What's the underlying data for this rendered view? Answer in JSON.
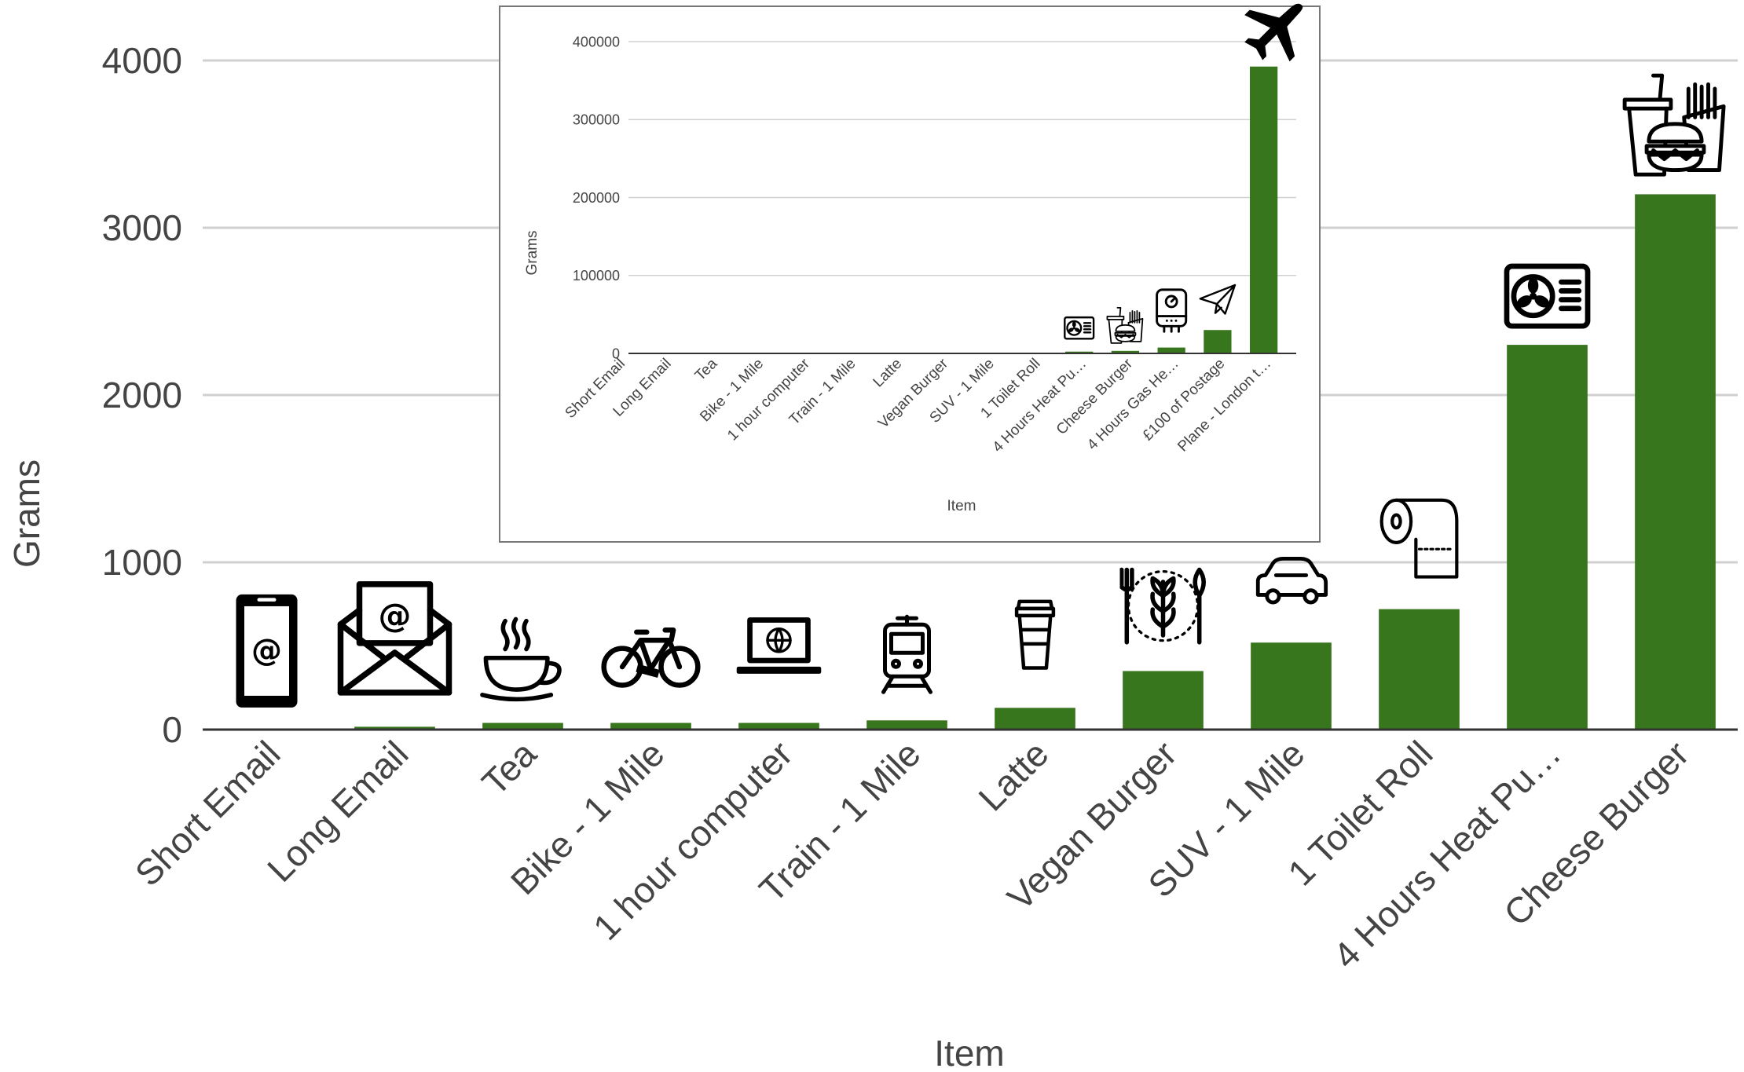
{
  "chart_data": [
    {
      "type": "bar",
      "title": "",
      "xlabel": "Item",
      "ylabel": "Grams",
      "ylim": [
        0,
        4000
      ],
      "yticks": [
        0,
        1000,
        2000,
        3000,
        4000
      ],
      "grid": true,
      "legend": "none",
      "bar_color": "#38761d",
      "categories": [
        "Short Email",
        "Long Email",
        "Tea",
        "Bike - 1 Mile",
        "1 hour computer",
        "Train - 1 Mile",
        "Latte",
        "Vegan Burger",
        "SUV - 1 Mile",
        "1 Toilet Roll",
        "4 Hours Heat Pu…",
        "Cheese Burger"
      ],
      "values": [
        0.3,
        17,
        40,
        40,
        40,
        55,
        130,
        350,
        520,
        720,
        2300,
        3200
      ],
      "icons": [
        "phone-icon",
        "email-envelope-icon",
        "tea-cup-icon",
        "bicycle-icon",
        "laptop-icon",
        "train-icon",
        "coffee-cup-icon",
        "vegan-food-icon",
        "car-icon",
        "toilet-roll-icon",
        "heat-pump-icon",
        "fast-food-icon"
      ]
    },
    {
      "type": "bar",
      "title": "",
      "xlabel": "Item",
      "ylabel": "Grams",
      "ylim": [
        0,
        400000
      ],
      "yticks": [
        0,
        100000,
        200000,
        300000,
        400000
      ],
      "grid": true,
      "legend": "none",
      "bar_color": "#38761d",
      "categories": [
        "Short Email",
        "Long Email",
        "Tea",
        "Bike - 1 Mile",
        "1 hour computer",
        "Train - 1 Mile",
        "Latte",
        "Vegan Burger",
        "SUV - 1 Mile",
        "1 Toilet Roll",
        "4 Hours Heat Pu…",
        "Cheese Burger",
        "4 Hours Gas He…",
        "£100 of Postage",
        "Plane - London t…"
      ],
      "values": [
        0.3,
        17,
        40,
        40,
        40,
        55,
        130,
        350,
        520,
        720,
        2300,
        3200,
        7500,
        30000,
        368000
      ],
      "icons": [
        "heat-pump-icon",
        "fast-food-icon",
        "boiler-icon",
        "paper-plane-icon",
        "airplane-icon"
      ]
    }
  ]
}
